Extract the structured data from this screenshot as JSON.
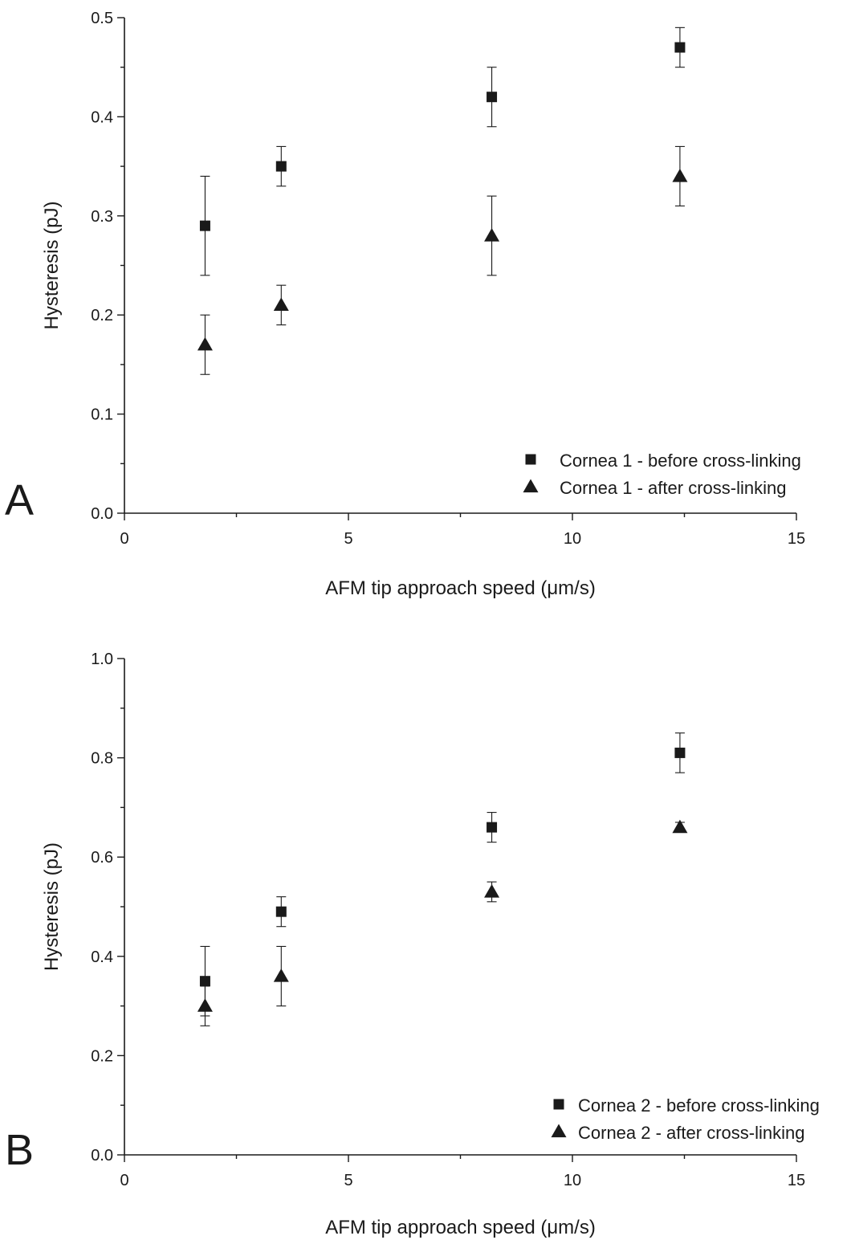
{
  "chart_data": [
    {
      "type": "scatter",
      "panel_label": "A",
      "xlabel": "AFM tip approach speed (μm/s)",
      "ylabel": "Hysteresis (pJ)",
      "xlim": [
        0,
        15
      ],
      "ylim": [
        0,
        0.5
      ],
      "x_ticks": [
        0,
        5,
        10,
        15
      ],
      "x_tick_labels": [
        "0",
        "5",
        "10",
        "15"
      ],
      "y_ticks": [
        0,
        0.1,
        0.2,
        0.3,
        0.4,
        0.5
      ],
      "y_tick_labels": [
        "0.0",
        "0.1",
        "0.2",
        "0.3",
        "0.4",
        "0.5"
      ],
      "grid": false,
      "legend_position": "bottom-right",
      "series": [
        {
          "name": "Cornea 1 - before cross-linking",
          "marker": "square",
          "x": [
            1.8,
            3.5,
            8.2,
            12.4
          ],
          "y": [
            0.29,
            0.35,
            0.42,
            0.47
          ],
          "yerr": [
            0.05,
            0.02,
            0.03,
            0.02
          ]
        },
        {
          "name": "Cornea 1 - after cross-linking",
          "marker": "triangle",
          "x": [
            1.8,
            3.5,
            8.2,
            12.4
          ],
          "y": [
            0.17,
            0.21,
            0.28,
            0.34
          ],
          "yerr": [
            0.03,
            0.02,
            0.04,
            0.03
          ]
        }
      ]
    },
    {
      "type": "scatter",
      "panel_label": "B",
      "xlabel": "AFM tip approach speed (μm/s)",
      "ylabel": "Hysteresis (pJ)",
      "xlim": [
        0,
        15
      ],
      "ylim": [
        0,
        1.0
      ],
      "x_ticks": [
        0,
        5,
        10,
        15
      ],
      "x_tick_labels": [
        "0",
        "5",
        "10",
        "15"
      ],
      "y_ticks": [
        0,
        0.2,
        0.4,
        0.6,
        0.8,
        1.0
      ],
      "y_tick_labels": [
        "0.0",
        "0.2",
        "0.4",
        "0.6",
        "0.8",
        "1.0"
      ],
      "grid": false,
      "legend_position": "bottom-right",
      "series": [
        {
          "name": "Cornea 2 - before cross-linking",
          "marker": "square",
          "x": [
            1.8,
            3.5,
            8.2,
            12.4
          ],
          "y": [
            0.35,
            0.49,
            0.66,
            0.81
          ],
          "yerr": [
            0.07,
            0.03,
            0.03,
            0.04
          ]
        },
        {
          "name": "Cornea 2 - after cross-linking",
          "marker": "triangle",
          "x": [
            1.8,
            3.5,
            8.2,
            12.4
          ],
          "y": [
            0.3,
            0.36,
            0.53,
            0.66
          ],
          "yerr": [
            0.04,
            0.06,
            0.02,
            0.01
          ]
        }
      ]
    }
  ]
}
